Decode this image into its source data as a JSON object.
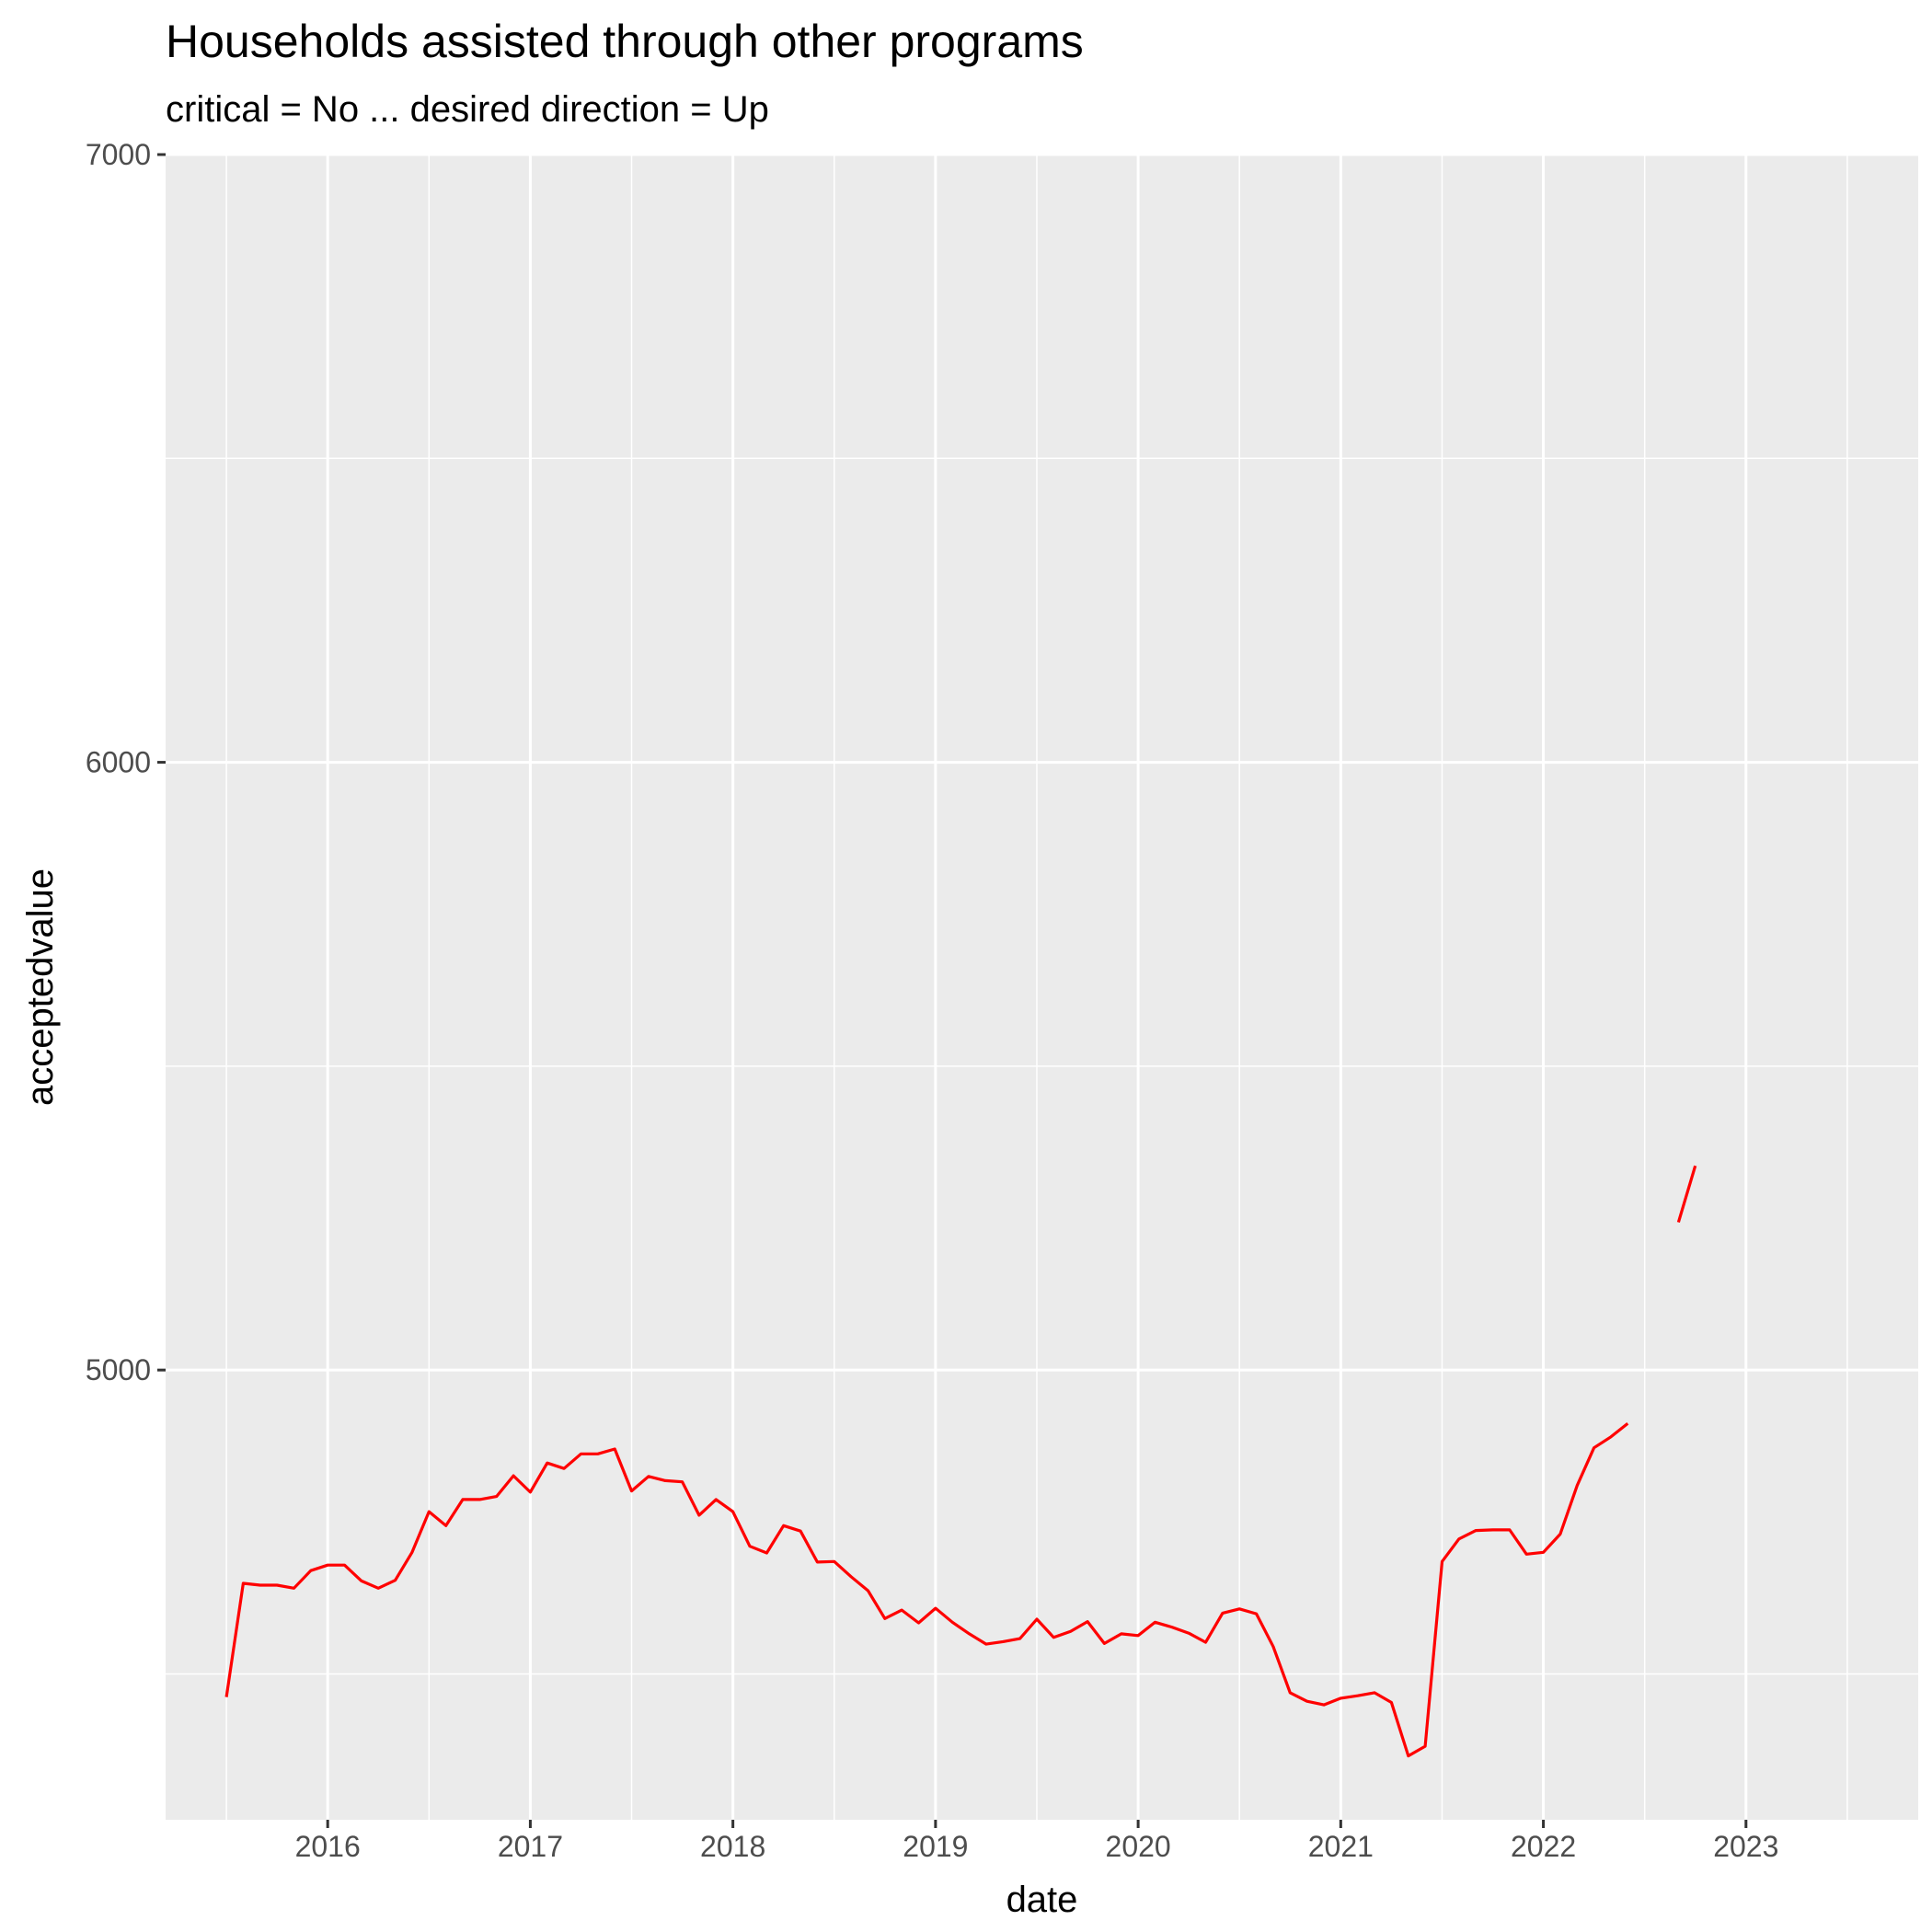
{
  "chart_data": {
    "type": "line",
    "title": "Households assisted through other programs",
    "subtitle": "critical = No ... desired direction = Up",
    "xlabel": "date",
    "ylabel": "acceptedvalue",
    "xlim": [
      2015.2,
      2023.85
    ],
    "ylim": [
      4260,
      7000
    ],
    "x_ticks": [
      2016,
      2017,
      2018,
      2019,
      2020,
      2021,
      2022,
      2023
    ],
    "y_ticks": [
      5000,
      6000,
      7000
    ],
    "grid": true,
    "legend": "none",
    "colors": {
      "line": "#ff0000",
      "panel": "#ebebeb",
      "grid": "#ffffff"
    },
    "series": [
      {
        "segments": [
          {
            "x": [
              "2015-07",
              "2015-08",
              "2015-09",
              "2015-10",
              "2015-11",
              "2015-12",
              "2016-01",
              "2016-02",
              "2016-03",
              "2016-04",
              "2016-05",
              "2016-06",
              "2016-07",
              "2016-08",
              "2016-09",
              "2016-10",
              "2016-11",
              "2016-12",
              "2017-01",
              "2017-02",
              "2017-03",
              "2017-04",
              "2017-05",
              "2017-06",
              "2017-07",
              "2017-08",
              "2017-09",
              "2017-10",
              "2017-11",
              "2017-12",
              "2018-01",
              "2018-02",
              "2018-03",
              "2018-04",
              "2018-05",
              "2018-06",
              "2018-07",
              "2018-08",
              "2018-09",
              "2018-10",
              "2018-11",
              "2018-12",
              "2019-01",
              "2019-02",
              "2019-03",
              "2019-04",
              "2019-05",
              "2019-06",
              "2019-07",
              "2019-08",
              "2019-09",
              "2019-10",
              "2019-11",
              "2019-12",
              "2020-01",
              "2020-02",
              "2020-03",
              "2020-04",
              "2020-05",
              "2020-06",
              "2020-07",
              "2020-08",
              "2020-09",
              "2020-10",
              "2020-11",
              "2020-12",
              "2021-01",
              "2021-02",
              "2021-03",
              "2021-04",
              "2021-05",
              "2021-06",
              "2021-07",
              "2021-08",
              "2021-09",
              "2021-10",
              "2021-11",
              "2021-12",
              "2022-01",
              "2022-02",
              "2022-03",
              "2022-04",
              "2022-05",
              "2022-06"
            ],
            "y": [
              4462,
              4649,
              4646,
              4646,
              4641,
              4670,
              4679,
              4679,
              4653,
              4641,
              4654,
              4700,
              4767,
              4744,
              4787,
              4787,
              4792,
              4826,
              4799,
              4847,
              4838,
              4862,
              4862,
              4870,
              4801,
              4825,
              4818,
              4816,
              4761,
              4787,
              4767,
              4710,
              4699,
              4744,
              4735,
              4684,
              4685,
              4660,
              4637,
              4591,
              4605,
              4584,
              4608,
              4585,
              4566,
              4549,
              4553,
              4558,
              4590,
              4560,
              4570,
              4586,
              4550,
              4566,
              4563,
              4585,
              4577,
              4567,
              4552,
              4600,
              4607,
              4599,
              4545,
              4469,
              4455,
              4449,
              4460,
              4464,
              4469,
              4453,
              4365,
              4381,
              4685,
              4722,
              4736,
              4737,
              4737,
              4697,
              4700,
              4730,
              4810,
              4872,
              4890,
              4912
            ]
          },
          {
            "x": [
              "2022-09",
              "2022-10"
            ],
            "y": [
              5243,
              5336
            ]
          }
        ]
      }
    ]
  }
}
